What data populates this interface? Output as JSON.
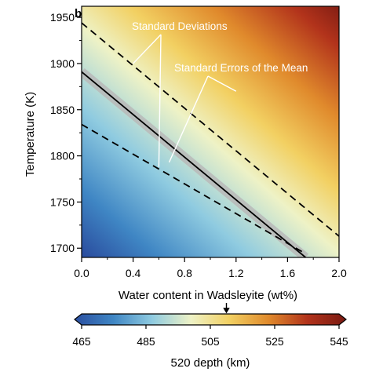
{
  "chart_data": {
    "type": "heatmap",
    "panel_label": "b",
    "xlabel": "Water content in Wadsleyite (wt%)",
    "ylabel": "Temperature (K)",
    "xlim": [
      0.0,
      2.0
    ],
    "ylim": [
      1690,
      1962
    ],
    "x_ticks": [
      "0.0",
      "0.4",
      "0.8",
      "1.2",
      "1.6",
      "2.0"
    ],
    "x_tick_values": [
      0.0,
      0.4,
      0.8,
      1.2,
      1.6,
      2.0
    ],
    "y_ticks": [
      "1700",
      "1750",
      "1800",
      "1850",
      "1900",
      "1950"
    ],
    "y_tick_values": [
      1700,
      1750,
      1800,
      1850,
      1900,
      1950
    ],
    "grid": false,
    "field": {
      "name": "520 depth",
      "colorbar_label": "520 depth (km)",
      "colorbar_ticks": [
        "465",
        "485",
        "505",
        "525",
        "545"
      ],
      "colorbar_range": [
        465,
        545
      ],
      "marker_value": 510,
      "colormap": [
        "#2b4fa0",
        "#3f86c4",
        "#8fcbe0",
        "#eef2c6",
        "#f2d062",
        "#e08a2c",
        "#b2331b",
        "#7a1a12"
      ]
    },
    "lines": [
      {
        "role": "mean",
        "x": [
          0.0,
          1.74
        ],
        "y": [
          1891,
          1690
        ],
        "color": "#000000",
        "dash": "solid"
      },
      {
        "role": "standard_error_band",
        "x": [
          0.0,
          1.74
        ],
        "y": [
          1891,
          1690
        ],
        "half_width_K": 5,
        "color": "#b8b8b8"
      },
      {
        "role": "standard_deviation_upper",
        "x": [
          0.0,
          2.0
        ],
        "y": [
          1944,
          1713
        ],
        "color": "#000000",
        "dash": "dashed"
      },
      {
        "role": "standard_deviation_lower",
        "x": [
          0.0,
          1.74
        ],
        "y": [
          1834,
          1694
        ],
        "color": "#000000",
        "dash": "dashed"
      }
    ],
    "annotations": [
      {
        "text": "Standard Deviations",
        "pointers": [
          [
            0.4,
            1900
          ],
          [
            0.6,
            1788
          ]
        ]
      },
      {
        "text": "Standard Errors of the Mean",
        "pointers": [
          [
            0.68,
            1793
          ],
          [
            1.2,
            1870
          ]
        ]
      }
    ]
  }
}
